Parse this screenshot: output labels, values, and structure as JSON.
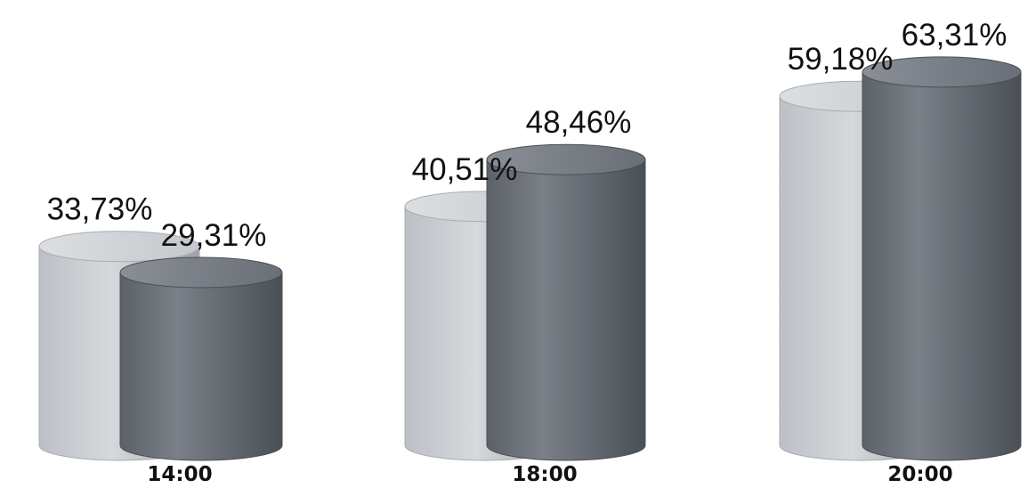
{
  "chart_data": {
    "type": "bar",
    "categories": [
      "14:00",
      "18:00",
      "20:00"
    ],
    "series": [
      {
        "values": [
          33.73,
          40.51,
          59.18
        ],
        "color": "#c2c5c9"
      },
      {
        "values": [
          29.31,
          48.46,
          63.31
        ],
        "color": "#6d727a"
      }
    ],
    "data_labels": [
      [
        "33,73%",
        "40,51%",
        "59,18%"
      ],
      [
        "29,31%",
        "48,46%",
        "63,31%"
      ]
    ],
    "bar_shape": "cylinder",
    "ylim": [
      0,
      70
    ],
    "grid": false,
    "legend": "none"
  }
}
